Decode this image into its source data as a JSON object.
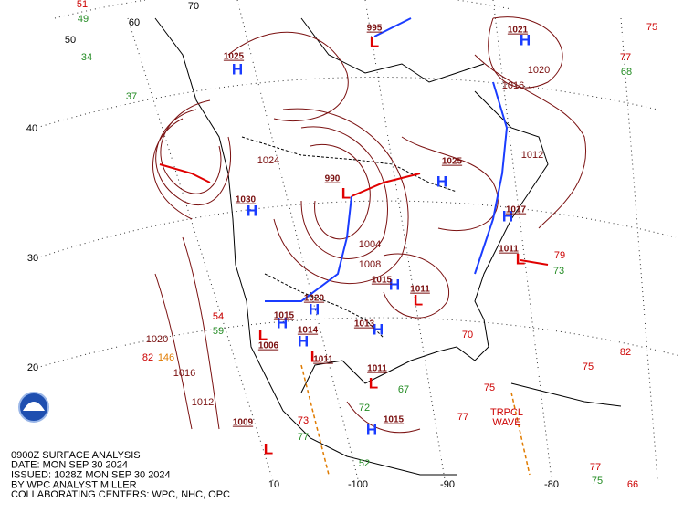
{
  "header": {
    "lines": [
      "0900Z SURFACE ANALYSIS",
      "DATE: MON SEP 30 2024",
      "ISSUED: 1028Z MON SEP 30 2024",
      "BY WPC ANALYST MILLER",
      "COLLABORATING CENTERS: WPC, NHC, OPC"
    ]
  },
  "grid_labels": [
    70,
    60,
    50,
    40,
    30,
    20,
    10,
    -100,
    -90,
    -80
  ],
  "highs": [
    {
      "symbol": "H",
      "pressure": 1021
    },
    {
      "symbol": "H",
      "pressure": 1025
    },
    {
      "symbol": "H",
      "pressure": 1030
    },
    {
      "symbol": "H",
      "pressure": 1025
    },
    {
      "symbol": "H",
      "pressure": 1017
    },
    {
      "symbol": "H",
      "pressure": 1015
    },
    {
      "symbol": "H",
      "pressure": 1020
    },
    {
      "symbol": "H",
      "pressure": 1015
    },
    {
      "symbol": "H",
      "pressure": 1014
    },
    {
      "symbol": "H",
      "pressure": 1013
    },
    {
      "symbol": "H",
      "pressure": 1015
    }
  ],
  "lows": [
    {
      "symbol": "L",
      "pressure": 995
    },
    {
      "symbol": "L",
      "pressure": 990
    },
    {
      "symbol": "L",
      "pressure": 1011
    },
    {
      "symbol": "L",
      "pressure": 1011
    },
    {
      "symbol": "L",
      "pressure": 1009
    },
    {
      "symbol": "L",
      "pressure": 1006
    },
    {
      "symbol": "L",
      "pressure": 1011
    },
    {
      "symbol": "L",
      "pressure": 1011
    }
  ],
  "isobar_labels": [
    1020,
    1016,
    1012,
    1024,
    1004,
    1008,
    1012,
    1016,
    1020
  ],
  "feature_labels": [
    "TRPCL",
    "WAVE"
  ],
  "stations": [
    {
      "value": 51,
      "color": "#cc0000"
    },
    {
      "value": 49,
      "color": "#228b22"
    },
    {
      "value": 34,
      "color": "#228b22"
    },
    {
      "value": 37,
      "color": "#228b22"
    },
    {
      "value": 75,
      "color": "#cc0000"
    },
    {
      "value": 77,
      "color": "#cc0000"
    },
    {
      "value": 68,
      "color": "#228b22"
    },
    {
      "value": 79,
      "color": "#cc0000"
    },
    {
      "value": 73,
      "color": "#228b22"
    },
    {
      "value": 82,
      "color": "#cc0000"
    },
    {
      "value": 75,
      "color": "#cc0000"
    },
    {
      "value": 75,
      "color": "#cc0000"
    },
    {
      "value": 77,
      "color": "#cc0000"
    },
    {
      "value": 77,
      "color": "#cc0000"
    },
    {
      "value": 75,
      "color": "#228b22"
    },
    {
      "value": 66,
      "color": "#cc0000"
    },
    {
      "value": 82,
      "color": "#cc0000"
    },
    {
      "value": 146,
      "color": "#e07b00"
    },
    {
      "value": 54,
      "color": "#cc0000"
    },
    {
      "value": 59,
      "color": "#228b22"
    },
    {
      "value": 73,
      "color": "#cc0000"
    },
    {
      "value": 77,
      "color": "#228b22"
    },
    {
      "value": 52,
      "color": "#228b22"
    },
    {
      "value": 72,
      "color": "#228b22"
    },
    {
      "value": 67,
      "color": "#228b22"
    },
    {
      "value": 70,
      "color": "#cc0000"
    }
  ]
}
